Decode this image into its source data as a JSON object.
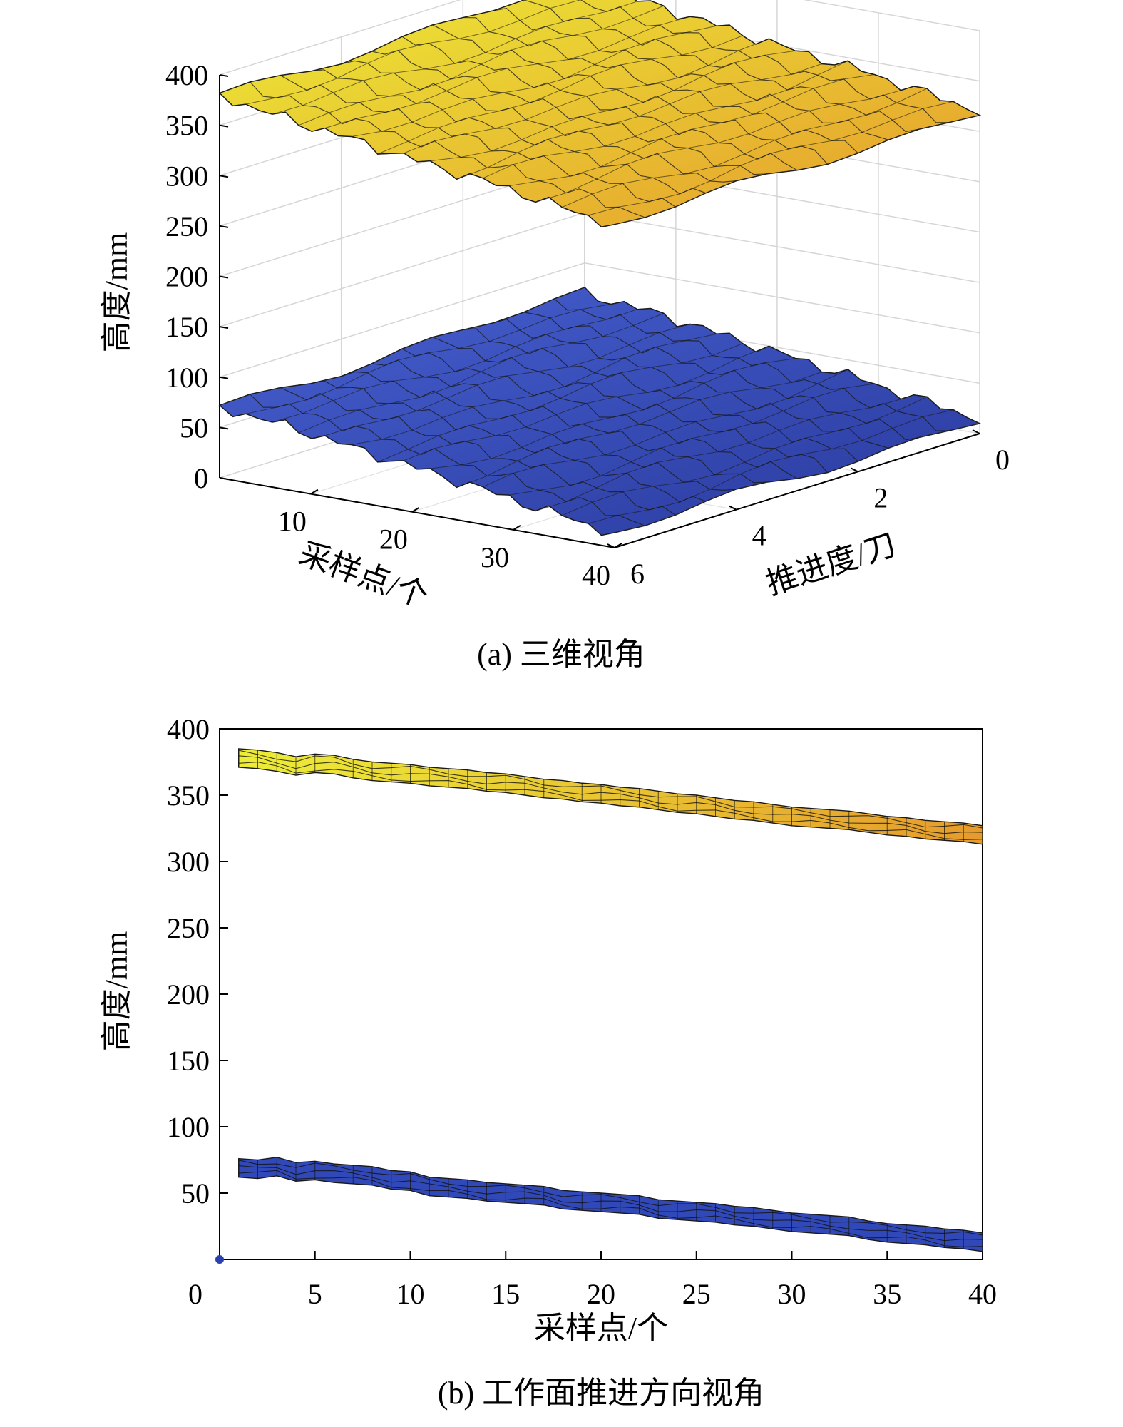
{
  "chart_data": [
    {
      "type": "surface",
      "caption": "(a) 三维视角",
      "zlabel": "高度/mm",
      "xlabel": "采样点/个",
      "ylabel": "推进度/刀",
      "zlim": [
        0,
        400
      ],
      "ztick_labels": [
        "0",
        "50",
        "100",
        "150",
        "200",
        "250",
        "300",
        "350",
        "400"
      ],
      "xtick_labels": [
        "10",
        "20",
        "30",
        "40"
      ],
      "ytick_labels": [
        "0",
        "2",
        "4",
        "6"
      ],
      "xlim": [
        1,
        40
      ],
      "ylim": [
        0,
        6
      ],
      "grid": true,
      "series": [
        {
          "x": [
            1,
            5,
            10,
            15,
            20,
            25,
            30,
            35,
            40
          ],
          "z": [
            380,
            372,
            365,
            358,
            350,
            344,
            337,
            328,
            320
          ],
          "color_low": "#e59b2c",
          "color_high": "#eded37"
        },
        {
          "x": [
            1,
            5,
            10,
            15,
            20,
            25,
            30,
            35,
            40
          ],
          "z": [
            70,
            66,
            60,
            52,
            45,
            38,
            30,
            22,
            14
          ],
          "color_low": "#2a3a9e",
          "color_high": "#4660d0"
        }
      ]
    },
    {
      "type": "line",
      "caption": "(b) 工作面推进方向视角",
      "xlabel": "采样点/个",
      "ylabel": "高度/mm",
      "xlim": [
        0,
        40
      ],
      "ylim": [
        0,
        400
      ],
      "xtick_labels": [
        "0",
        "5",
        "10",
        "15",
        "20",
        "25",
        "30",
        "35",
        "40"
      ],
      "ytick_labels": [
        "50",
        "100",
        "150",
        "200",
        "250",
        "300",
        "350",
        "400"
      ],
      "series": [
        {
          "x": [
            1,
            2,
            3,
            4,
            5,
            6,
            7,
            8,
            9,
            10,
            11,
            12,
            13,
            14,
            15,
            16,
            17,
            18,
            19,
            20,
            21,
            22,
            23,
            24,
            25,
            26,
            27,
            28,
            29,
            30,
            31,
            32,
            33,
            34,
            35,
            36,
            37,
            38,
            39,
            40
          ],
          "y": [
            378,
            377,
            375,
            372,
            374,
            373,
            370,
            368,
            367,
            366,
            364,
            363,
            362,
            360,
            359,
            357,
            355,
            354,
            352,
            351,
            349,
            348,
            346,
            344,
            343,
            341,
            339,
            338,
            336,
            334,
            333,
            332,
            331,
            329,
            327,
            326,
            324,
            323,
            322,
            320
          ],
          "color_low": "#e59b2c",
          "color_high": "#eded37"
        },
        {
          "x": [
            1,
            2,
            3,
            4,
            5,
            6,
            7,
            8,
            9,
            10,
            11,
            12,
            13,
            14,
            15,
            16,
            17,
            18,
            19,
            20,
            21,
            22,
            23,
            24,
            25,
            26,
            27,
            28,
            29,
            30,
            31,
            32,
            33,
            34,
            35,
            36,
            37,
            38,
            39,
            40
          ],
          "y": [
            69,
            68,
            70,
            66,
            67,
            65,
            64,
            63,
            60,
            59,
            55,
            54,
            53,
            51,
            50,
            49,
            48,
            45,
            44,
            43,
            42,
            41,
            38,
            37,
            36,
            35,
            33,
            32,
            30,
            28,
            27,
            26,
            25,
            22,
            20,
            19,
            18,
            16,
            15,
            13
          ],
          "color_low": "#2a3a9e",
          "color_high": "#4660d0"
        }
      ]
    }
  ]
}
